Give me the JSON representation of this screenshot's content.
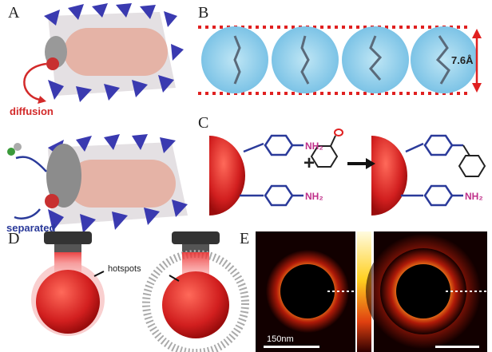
{
  "panels": {
    "a": {
      "label": "A",
      "annotations": [
        "diffusion",
        "separated"
      ]
    },
    "b": {
      "label": "B",
      "dimension": "7.6Å"
    },
    "c": {
      "label": "C",
      "amine_labels": [
        "NH₂",
        "NH₂",
        "NH₂"
      ]
    },
    "d": {
      "label": "D",
      "annotation": "hotspots"
    },
    "e": {
      "label": "E",
      "scale_bar": "150nm"
    }
  }
}
